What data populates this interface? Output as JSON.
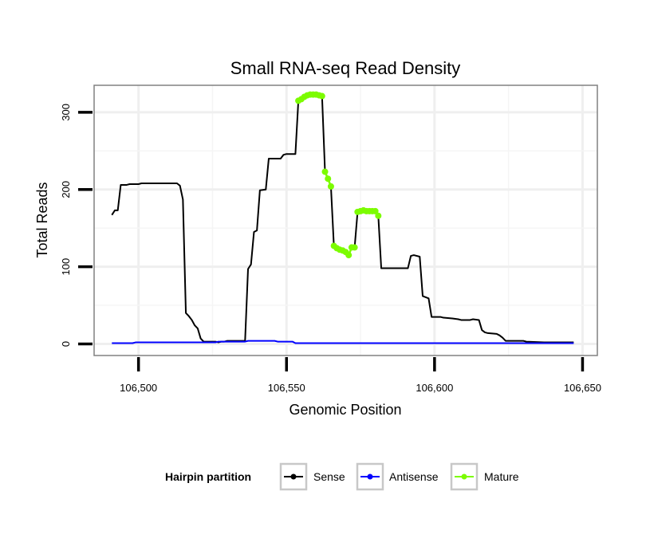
{
  "chart_data": {
    "type": "line",
    "title": "Small RNA-seq Read Density",
    "xlabel": "Genomic Position",
    "ylabel": "Total Reads",
    "xlim": [
      106485,
      106655
    ],
    "ylim": [
      -15,
      335
    ],
    "x_ticks": [
      106500,
      106550,
      106600,
      106650
    ],
    "x_tick_labels": [
      "106,500",
      "106,550",
      "106,600",
      "106,650"
    ],
    "y_ticks": [
      0,
      100,
      200,
      300
    ],
    "y_tick_labels": [
      "0",
      "100",
      "200",
      "300"
    ],
    "grid": true,
    "legend": {
      "title": "Hairpin partition",
      "position": "bottom",
      "entries": [
        "Sense",
        "Antisense",
        "Mature"
      ]
    },
    "series": [
      {
        "name": "Sense",
        "color": "#000000",
        "points": [
          [
            106491,
            167
          ],
          [
            106492,
            173
          ],
          [
            106493,
            173
          ],
          [
            106494,
            206
          ],
          [
            106496,
            206
          ],
          [
            106497,
            207
          ],
          [
            106500,
            207
          ],
          [
            106501,
            208
          ],
          [
            106513,
            208
          ],
          [
            106514,
            205
          ],
          [
            106515,
            187
          ],
          [
            106516,
            40
          ],
          [
            106517,
            36
          ],
          [
            106518,
            31
          ],
          [
            106519,
            24
          ],
          [
            106520,
            20
          ],
          [
            106521,
            7
          ],
          [
            106522,
            3
          ],
          [
            106526,
            3
          ],
          [
            106527,
            2
          ],
          [
            106528,
            3
          ],
          [
            106529,
            3
          ],
          [
            106530,
            4
          ],
          [
            106536,
            4
          ],
          [
            106537,
            97
          ],
          [
            106538,
            103
          ],
          [
            106539,
            145
          ],
          [
            106540,
            147
          ],
          [
            106541,
            199
          ],
          [
            106543,
            200
          ],
          [
            106544,
            240
          ],
          [
            106548,
            240
          ],
          [
            106549,
            245
          ],
          [
            106550,
            246
          ],
          [
            106553,
            246
          ],
          [
            106554,
            315
          ],
          [
            106555,
            317
          ],
          [
            106556,
            320
          ],
          [
            106557,
            322
          ],
          [
            106558,
            323
          ],
          [
            106560,
            323
          ],
          [
            106561,
            322
          ],
          [
            106562,
            321
          ],
          [
            106563,
            223
          ],
          [
            106564,
            214
          ],
          [
            106565,
            204
          ],
          [
            106566,
            127
          ],
          [
            106567,
            124
          ],
          [
            106568,
            122
          ],
          [
            106569,
            121
          ],
          [
            106570,
            119
          ],
          [
            106571,
            115
          ],
          [
            106572,
            125
          ],
          [
            106573,
            125
          ],
          [
            106574,
            171
          ],
          [
            106575,
            172
          ],
          [
            106576,
            173
          ],
          [
            106580,
            172
          ],
          [
            106581,
            166
          ],
          [
            106582,
            98
          ],
          [
            106591,
            98
          ],
          [
            106592,
            114
          ],
          [
            106593,
            115
          ],
          [
            106595,
            113
          ],
          [
            106596,
            62
          ],
          [
            106598,
            59
          ],
          [
            106599,
            35
          ],
          [
            106602,
            35
          ],
          [
            106603,
            34
          ],
          [
            106606,
            33
          ],
          [
            106608,
            32
          ],
          [
            106609,
            31
          ],
          [
            106612,
            31
          ],
          [
            106613,
            32
          ],
          [
            106615,
            31
          ],
          [
            106616,
            18
          ],
          [
            106617,
            15
          ],
          [
            106618,
            14
          ],
          [
            106621,
            13
          ],
          [
            106622,
            11
          ],
          [
            106623,
            8
          ],
          [
            106624,
            4
          ],
          [
            106630,
            4
          ],
          [
            106631,
            3
          ],
          [
            106637,
            2
          ],
          [
            106647,
            2
          ]
        ]
      },
      {
        "name": "Antisense",
        "color": "#0000ff",
        "points": [
          [
            106491,
            1
          ],
          [
            106498,
            1
          ],
          [
            106499,
            2
          ],
          [
            106526,
            2
          ],
          [
            106527,
            3
          ],
          [
            106536,
            3
          ],
          [
            106537,
            4
          ],
          [
            106546,
            4
          ],
          [
            106547,
            3
          ],
          [
            106552,
            3
          ],
          [
            106553,
            1
          ],
          [
            106647,
            1
          ]
        ]
      },
      {
        "name": "Mature",
        "color": "#7cfc00",
        "segments": [
          [
            [
              106554,
              315
            ],
            [
              106555,
              317
            ],
            [
              106556,
              320
            ],
            [
              106557,
              322
            ],
            [
              106558,
              323
            ],
            [
              106559,
              323
            ],
            [
              106560,
              323
            ],
            [
              106561,
              322
            ],
            [
              106562,
              321
            ]
          ],
          [
            [
              106563,
              223
            ],
            [
              106564,
              214
            ],
            [
              106565,
              204
            ]
          ],
          [
            [
              106566,
              127
            ],
            [
              106567,
              124
            ],
            [
              106568,
              122
            ],
            [
              106569,
              121
            ],
            [
              106570,
              119
            ],
            [
              106571,
              115
            ],
            [
              106572,
              125
            ],
            [
              106573,
              125
            ]
          ],
          [
            [
              106574,
              171
            ],
            [
              106575,
              172
            ],
            [
              106576,
              173
            ],
            [
              106577,
              172
            ],
            [
              106578,
              172
            ],
            [
              106579,
              172
            ],
            [
              106580,
              172
            ],
            [
              106581,
              166
            ]
          ]
        ]
      }
    ]
  }
}
